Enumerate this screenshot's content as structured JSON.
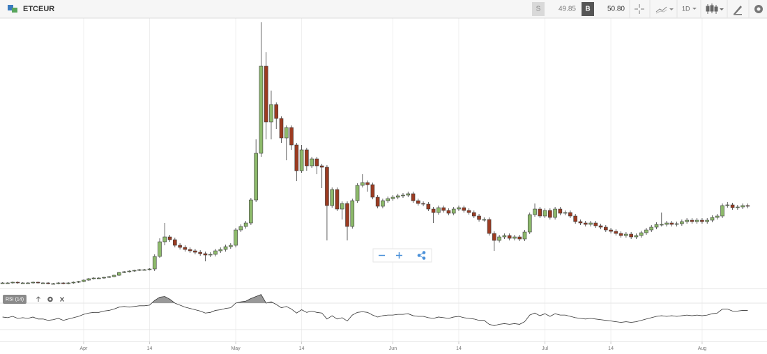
{
  "toolbar": {
    "symbol": "ETCEUR",
    "sell_label": "S",
    "sell_price": "49.85",
    "buy_label": "B",
    "buy_price": "50.80",
    "interval": "1D"
  },
  "chart_data": {
    "type": "candlestick",
    "up_color": "#8dba6b",
    "down_color": "#9c3b21",
    "outline_color": "#3a3a3a",
    "xlim": [
      -0.5,
      150.8
    ],
    "ylim": [
      0,
      39.4
    ],
    "grid": true,
    "xticks": [
      {
        "value": 16,
        "label": "Apr"
      },
      {
        "value": 29,
        "label": "14"
      },
      {
        "value": 46,
        "label": "May"
      },
      {
        "value": 59,
        "label": "14"
      },
      {
        "value": 77,
        "label": "Jun"
      },
      {
        "value": 90,
        "label": "14"
      },
      {
        "value": 107,
        "label": "Jul"
      },
      {
        "value": 120,
        "label": "14"
      },
      {
        "value": 138,
        "label": "Aug"
      }
    ],
    "open": [
      1.4,
      1.4,
      1.4,
      1.5,
      1.4,
      1.4,
      1.4,
      1.5,
      1.4,
      1.4,
      1.3,
      1.3,
      1.4,
      1.3,
      1.4,
      1.5,
      1.6,
      1.8,
      2.0,
      2.1,
      2.1,
      2.2,
      2.3,
      2.5,
      2.9,
      3.0,
      3.1,
      3.2,
      3.3,
      3.3,
      3.4,
      5.2,
      7.3,
      8.0,
      7.6,
      6.8,
      6.5,
      6.2,
      6.0,
      5.8,
      5.6,
      5.4,
      5.5,
      6.0,
      6.2,
      6.6,
      6.8,
      9.0,
      9.5,
      10.0,
      13.3,
      20.0,
      32.5,
      24.5,
      27.0,
      25.0,
      22.2,
      23.7,
      21.2,
      17.5,
      20.5,
      18.2,
      19.2,
      18.2,
      18.0,
      12.5,
      14.8,
      12.0,
      12.8,
      9.5,
      13.2,
      15.4,
      15.8,
      15.5,
      13.7,
      12.4,
      13.2,
      13.5,
      13.7,
      13.9,
      14.0,
      14.2,
      13.2,
      12.8,
      12.7,
      12.0,
      11.5,
      12.2,
      11.8,
      11.4,
      12.0,
      12.2,
      11.8,
      11.5,
      11.0,
      10.5,
      10.5,
      8.5,
      7.5,
      8.0,
      8.2,
      7.8,
      8.0,
      7.7,
      8.7,
      11.2,
      12.0,
      11.0,
      11.8,
      10.8,
      12.0,
      11.4,
      11.5,
      11.0,
      10.2,
      10.0,
      9.8,
      10.0,
      9.6,
      9.4,
      9.0,
      8.8,
      8.5,
      8.2,
      8.4,
      8.0,
      8.2,
      8.6,
      9.0,
      9.4,
      9.8,
      9.8,
      10.0,
      9.8,
      9.9,
      10.2,
      10.4,
      10.2,
      10.4,
      10.2,
      10.4,
      10.8,
      11.0,
      12.5,
      12.6,
      12.2,
      12.3,
      12.5
    ],
    "high": [
      1.5,
      1.5,
      1.6,
      1.6,
      1.5,
      1.5,
      1.6,
      1.6,
      1.5,
      1.5,
      1.4,
      1.5,
      1.5,
      1.5,
      1.6,
      1.7,
      1.9,
      2.1,
      2.2,
      2.2,
      2.3,
      2.4,
      2.6,
      3.0,
      3.1,
      3.2,
      3.3,
      3.4,
      3.4,
      3.5,
      5.5,
      7.8,
      10.0,
      8.3,
      7.9,
      7.1,
      6.8,
      6.5,
      6.3,
      6.1,
      5.9,
      5.8,
      6.3,
      6.5,
      6.9,
      7.1,
      9.3,
      9.8,
      10.3,
      13.6,
      22.0,
      38.8,
      34.5,
      29.0,
      27.3,
      25.3,
      24.0,
      24.0,
      21.5,
      21.2,
      20.8,
      19.5,
      19.5,
      18.5,
      18.3,
      15.1,
      15.1,
      13.1,
      13.1,
      13.5,
      15.7,
      17.0,
      16.1,
      15.8,
      14.0,
      13.5,
      13.8,
      14.0,
      14.2,
      14.3,
      14.5,
      14.5,
      13.5,
      13.1,
      13.0,
      12.3,
      12.5,
      12.5,
      12.1,
      12.3,
      12.5,
      12.5,
      12.1,
      11.8,
      11.3,
      10.8,
      10.8,
      8.8,
      8.3,
      8.5,
      8.5,
      8.3,
      8.3,
      9.0,
      11.5,
      12.8,
      12.3,
      12.1,
      12.1,
      12.3,
      12.3,
      11.8,
      11.8,
      11.3,
      10.5,
      10.3,
      10.3,
      10.3,
      9.9,
      9.7,
      9.3,
      9.1,
      8.8,
      8.7,
      8.7,
      8.5,
      8.9,
      9.3,
      9.7,
      10.1,
      11.5,
      10.3,
      10.3,
      10.2,
      10.5,
      10.7,
      10.7,
      10.7,
      10.7,
      10.7,
      11.1,
      11.3,
      12.8,
      13.0,
      12.9,
      12.6,
      12.8,
      12.8
    ],
    "low": [
      1.3,
      1.3,
      1.3,
      1.3,
      1.3,
      1.3,
      1.3,
      1.3,
      1.3,
      1.2,
      1.2,
      1.2,
      1.2,
      1.2,
      1.3,
      1.4,
      1.5,
      1.7,
      1.9,
      2.0,
      2.0,
      2.1,
      2.2,
      2.4,
      2.8,
      2.9,
      3.0,
      3.1,
      3.2,
      3.2,
      3.1,
      5.0,
      6.8,
      7.3,
      6.5,
      6.2,
      5.9,
      5.7,
      5.5,
      5.3,
      4.5,
      5.1,
      5.2,
      5.7,
      5.9,
      6.3,
      6.5,
      8.7,
      9.2,
      9.7,
      13.0,
      19.5,
      22.0,
      22.0,
      23.5,
      21.5,
      19.0,
      20.5,
      16.0,
      17.2,
      17.5,
      17.9,
      17.0,
      15.0,
      7.5,
      12.2,
      11.7,
      10.5,
      7.5,
      9.2,
      12.9,
      15.1,
      14.5,
      13.4,
      12.1,
      12.1,
      12.9,
      13.2,
      13.4,
      13.6,
      13.7,
      12.9,
      12.5,
      12.4,
      11.7,
      10.0,
      11.2,
      11.5,
      11.1,
      11.1,
      11.7,
      11.5,
      11.2,
      10.7,
      10.2,
      10.2,
      8.2,
      6.0,
      7.2,
      7.7,
      7.5,
      7.5,
      7.4,
      7.4,
      8.4,
      10.9,
      10.7,
      10.7,
      10.5,
      10.5,
      11.1,
      11.1,
      10.7,
      9.9,
      9.7,
      9.5,
      9.5,
      9.3,
      9.1,
      8.7,
      8.5,
      8.2,
      7.9,
      7.9,
      7.7,
      7.7,
      7.9,
      8.3,
      8.7,
      9.1,
      9.5,
      9.5,
      9.5,
      9.5,
      9.6,
      9.9,
      9.9,
      9.9,
      9.9,
      9.9,
      10.1,
      10.5,
      10.7,
      12.2,
      11.9,
      11.9,
      12.0,
      12.1
    ],
    "close": [
      1.4,
      1.4,
      1.5,
      1.4,
      1.4,
      1.4,
      1.5,
      1.4,
      1.4,
      1.3,
      1.3,
      1.4,
      1.3,
      1.4,
      1.5,
      1.6,
      1.8,
      2.0,
      2.1,
      2.1,
      2.2,
      2.3,
      2.5,
      2.9,
      3.0,
      3.1,
      3.2,
      3.3,
      3.3,
      3.4,
      5.2,
      7.3,
      8.0,
      7.6,
      6.8,
      6.5,
      6.2,
      6.0,
      5.8,
      5.6,
      5.4,
      5.5,
      6.0,
      6.2,
      6.6,
      6.8,
      9.0,
      9.5,
      10.0,
      13.3,
      20.0,
      32.5,
      24.5,
      27.0,
      25.0,
      22.2,
      23.7,
      21.2,
      17.5,
      20.5,
      18.2,
      19.2,
      18.2,
      18.0,
      12.5,
      14.8,
      12.0,
      12.8,
      9.5,
      13.2,
      15.4,
      15.8,
      15.5,
      13.7,
      12.4,
      13.2,
      13.5,
      13.7,
      13.9,
      14.0,
      14.2,
      13.2,
      12.8,
      12.7,
      12.0,
      11.5,
      12.2,
      11.8,
      11.4,
      12.0,
      12.2,
      11.8,
      11.5,
      11.0,
      10.5,
      10.5,
      8.5,
      7.5,
      8.0,
      8.2,
      7.8,
      8.0,
      7.7,
      8.7,
      11.2,
      12.0,
      11.0,
      11.8,
      10.8,
      12.0,
      11.4,
      11.5,
      11.0,
      10.2,
      10.0,
      9.8,
      10.0,
      9.6,
      9.4,
      9.0,
      8.8,
      8.5,
      8.2,
      8.4,
      8.0,
      8.2,
      8.6,
      9.0,
      9.4,
      9.8,
      9.8,
      10.0,
      9.8,
      9.9,
      10.2,
      10.4,
      10.2,
      10.4,
      10.2,
      10.4,
      10.8,
      11.0,
      12.5,
      12.6,
      12.2,
      12.3,
      12.5,
      12.4
    ],
    "rsi": {
      "label": "RSI (14)",
      "color": "#333333",
      "fill": "#999999",
      "ylim": [
        0,
        100
      ],
      "levels": [
        30,
        70
      ],
      "values": [
        49,
        48,
        50,
        47,
        48,
        47,
        49,
        46,
        46,
        44,
        45,
        47,
        44,
        46,
        48,
        50,
        53,
        55,
        56,
        56,
        58,
        59,
        61,
        64,
        65,
        64,
        65,
        66,
        66,
        67,
        74,
        79,
        80,
        76,
        70,
        67,
        64,
        62,
        60,
        58,
        55,
        56,
        59,
        60,
        62,
        63,
        70,
        72,
        73,
        77,
        80,
        83,
        70,
        72,
        68,
        63,
        65,
        61,
        55,
        60,
        56,
        58,
        56,
        55,
        46,
        51,
        46,
        48,
        43,
        52,
        56,
        57,
        56,
        52,
        49,
        51,
        52,
        52,
        53,
        53,
        54,
        51,
        50,
        50,
        48,
        47,
        49,
        48,
        47,
        49,
        50,
        48,
        47,
        46,
        44,
        44,
        38,
        36,
        38,
        39,
        38,
        39,
        38,
        42,
        52,
        55,
        51,
        54,
        50,
        54,
        52,
        52,
        50,
        48,
        47,
        46,
        47,
        46,
        45,
        44,
        43,
        42,
        41,
        42,
        41,
        42,
        44,
        46,
        48,
        50,
        51,
        50,
        51,
        50,
        51,
        52,
        51,
        52,
        51,
        52,
        54,
        55,
        61,
        61,
        58,
        58,
        59,
        59
      ]
    }
  }
}
